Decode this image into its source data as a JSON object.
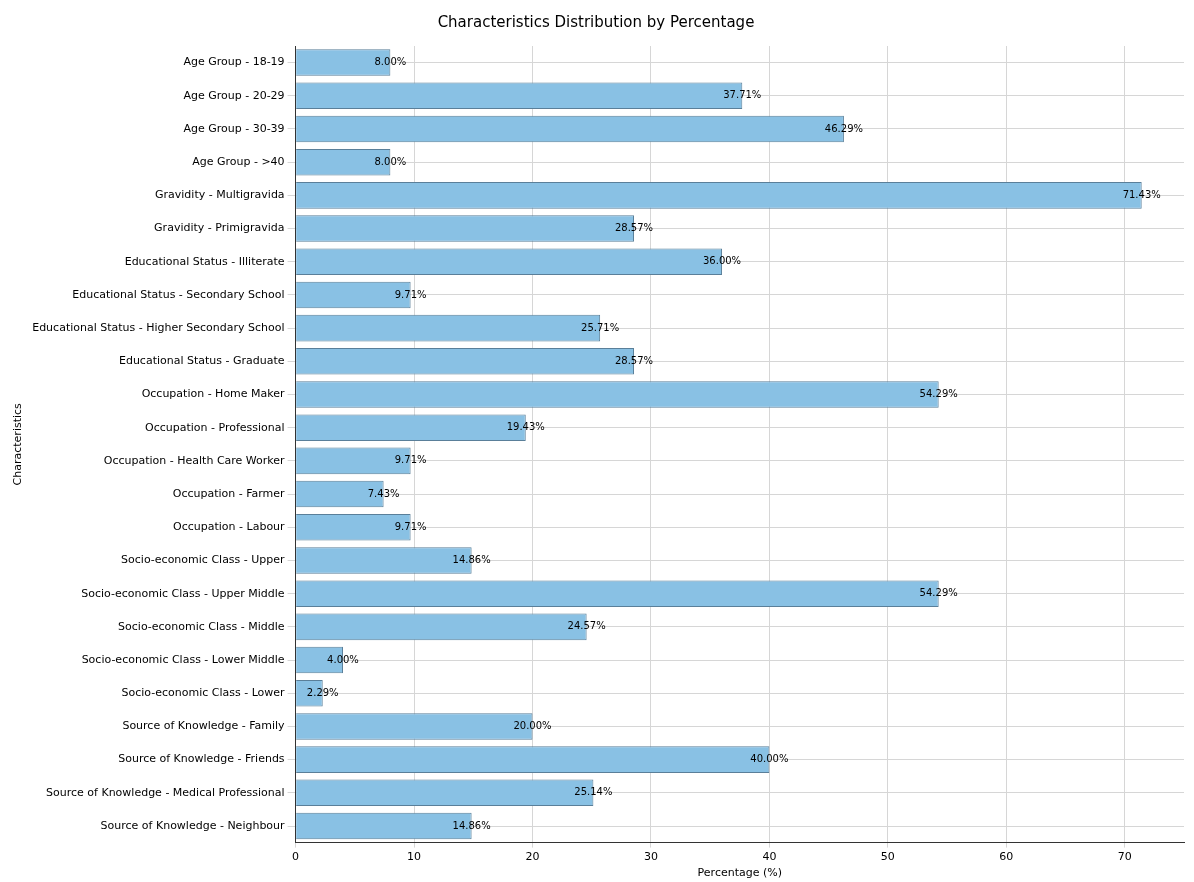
{
  "chart_data": {
    "type": "bar",
    "orientation": "horizontal",
    "title": "Characteristics Distribution by Percentage",
    "xlabel": "Percentage (%)",
    "ylabel": "Characteristics",
    "categories": [
      "Age Group - 18-19",
      "Age Group - 20-29",
      "Age Group - 30-39",
      "Age Group - >40",
      "Gravidity - Multigravida",
      "Gravidity - Primigravida",
      "Educational Status - Illiterate",
      "Educational Status - Secondary School",
      "Educational Status - Higher Secondary School",
      "Educational Status - Graduate",
      "Occupation - Home Maker",
      "Occupation - Professional",
      "Occupation - Health Care Worker",
      "Occupation - Farmer",
      "Occupation - Labour",
      "Socio-economic Class - Upper",
      "Socio-economic Class - Upper Middle",
      "Socio-economic Class - Middle",
      "Socio-economic Class - Lower Middle",
      "Socio-economic Class - Lower",
      "Source of Knowledge - Family",
      "Source of Knowledge - Friends",
      "Source of Knowledge - Medical Professional",
      "Source of Knowledge - Neighbour"
    ],
    "values": [
      8.0,
      37.71,
      46.29,
      8.0,
      71.43,
      28.57,
      36.0,
      9.71,
      25.71,
      28.57,
      54.29,
      19.43,
      9.71,
      7.43,
      9.71,
      14.86,
      54.29,
      24.57,
      4.0,
      2.29,
      20.0,
      40.0,
      25.14,
      14.86
    ],
    "value_labels": [
      "8.00%",
      "37.71%",
      "46.29%",
      "8.00%",
      "71.43%",
      "28.57%",
      "36.00%",
      "9.71%",
      "25.71%",
      "28.57%",
      "54.29%",
      "19.43%",
      "9.71%",
      "7.43%",
      "9.71%",
      "14.86%",
      "54.29%",
      "24.57%",
      "4.00%",
      "2.29%",
      "20.00%",
      "40.00%",
      "25.14%",
      "14.86%"
    ],
    "color": "#89c1e4",
    "xlim": [
      0,
      75
    ],
    "xticks": [
      0,
      10,
      20,
      30,
      40,
      50,
      60,
      70
    ],
    "grid": true
  }
}
